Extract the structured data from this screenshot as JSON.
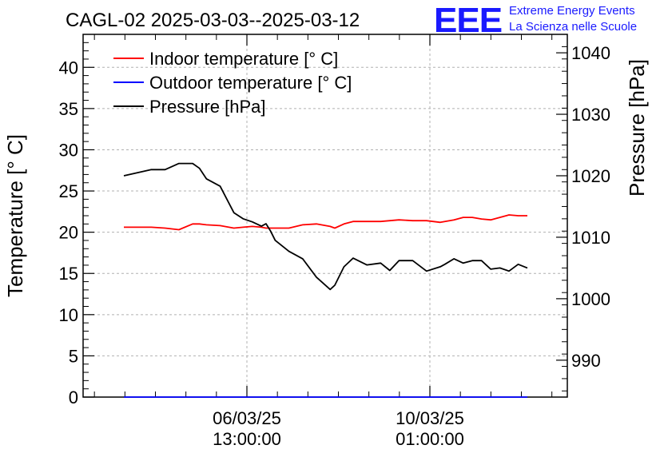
{
  "chart_data": {
    "type": "line",
    "title": "CAGL-02 2025-03-03--2025-03-12",
    "ylabel_left": "Temperature [° C]",
    "ylabel_right": "Pressure [hPa]",
    "ylim_left": [
      0,
      44
    ],
    "ylim_right": [
      984,
      1043
    ],
    "left_ticks": [
      0,
      5,
      10,
      15,
      20,
      25,
      30,
      35,
      40
    ],
    "right_ticks": [
      990,
      1000,
      1010,
      1020,
      1030,
      1040
    ],
    "x_ticks": [
      {
        "date": "06/03/25",
        "time": "13:00:00"
      },
      {
        "date": "10/03/25",
        "time": "01:00:00"
      }
    ],
    "grid": true,
    "legend_position": "top-left",
    "x": [
      0.0,
      0.3,
      0.6,
      0.9,
      1.2,
      1.5,
      1.65,
      1.8,
      2.1,
      2.4,
      2.6,
      2.8,
      3.0,
      3.1,
      3.2,
      3.3,
      3.6,
      3.9,
      4.2,
      4.5,
      4.6,
      4.8,
      5.0,
      5.3,
      5.6,
      5.8,
      6.0,
      6.3,
      6.6,
      6.9,
      7.0,
      7.2,
      7.4,
      7.6,
      7.8,
      8.0,
      8.2,
      8.4,
      8.6,
      8.8
    ],
    "series": [
      {
        "name": "Indoor temperature [° C]",
        "axis": "left",
        "color": "#ff0000",
        "values": [
          20.6,
          20.6,
          20.6,
          20.5,
          20.3,
          21.0,
          21.0,
          20.9,
          20.8,
          20.5,
          20.6,
          20.7,
          20.6,
          20.5,
          20.5,
          20.5,
          20.5,
          20.9,
          21.0,
          20.7,
          20.5,
          21.0,
          21.3,
          21.3,
          21.3,
          21.4,
          21.5,
          21.4,
          21.4,
          21.2,
          21.3,
          21.5,
          21.8,
          21.8,
          21.6,
          21.5,
          21.8,
          22.1,
          22.0,
          22.0
        ]
      },
      {
        "name": "Outdoor temperature [° C]",
        "axis": "left",
        "color": "#0000ff",
        "values": [
          0,
          0,
          0,
          0,
          0,
          0,
          0,
          0,
          0,
          0,
          0,
          0,
          0,
          0,
          0,
          0,
          0,
          0,
          0,
          0,
          0,
          0,
          0,
          0,
          0,
          0,
          0,
          0,
          0,
          0,
          0,
          0,
          0,
          0,
          0,
          0,
          0,
          0,
          0,
          0
        ]
      },
      {
        "name": "Pressure [hPa]",
        "axis": "right",
        "color": "#000000",
        "values": [
          1020,
          1020.5,
          1021,
          1021,
          1022,
          1022,
          1021.2,
          1019.5,
          1018.3,
          1014,
          1013,
          1012.5,
          1011.8,
          1012.2,
          1011,
          1009.5,
          1007.7,
          1006.5,
          1003.5,
          1001.5,
          1002.2,
          1005.2,
          1006.6,
          1005.5,
          1005.8,
          1004.6,
          1006.2,
          1006.2,
          1004.5,
          1005.2,
          1005.6,
          1006.5,
          1005.8,
          1006.2,
          1006.2,
          1004.8,
          1005.0,
          1004.5,
          1005.6,
          1005.0
        ]
      }
    ]
  },
  "logo": {
    "mark": "EEE",
    "line1": "Extreme Energy Events",
    "line2": "La Scienza nelle Scuole",
    "color": "#1a1aff"
  }
}
